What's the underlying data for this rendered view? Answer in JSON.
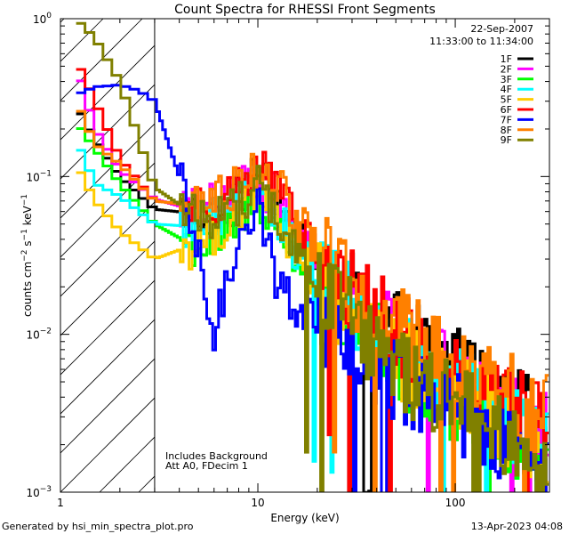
{
  "chart_data": {
    "type": "line",
    "title": "Count Spectra for RHESSI Front Segments",
    "xlabel": "Energy (keV)",
    "ylabel_parts": {
      "a": "counts cm",
      "sup1": "−2",
      "b": " s",
      "sup2": "−1",
      "c": " keV",
      "sup3": "−1"
    },
    "x_scale": "log",
    "y_scale": "log",
    "xlim": [
      1,
      300
    ],
    "ylim": [
      0.001,
      1
    ],
    "x_ticks": [
      {
        "value": 1,
        "label": "1"
      },
      {
        "value": 10,
        "label": "10"
      },
      {
        "value": 100,
        "label": "100"
      }
    ],
    "y_ticks": [
      {
        "value": 0.001,
        "base": "10",
        "exp": "−3"
      },
      {
        "value": 0.01,
        "base": "10",
        "exp": "−2"
      },
      {
        "value": 0.1,
        "base": "10",
        "exp": "−1"
      },
      {
        "value": 1,
        "base": "10",
        "exp": "0"
      }
    ],
    "date": "22-Sep-2007",
    "time_range": "11:33:00 to 11:34:00",
    "cutoff_energy_keV": 3.0,
    "annotation_lines": [
      "Includes Background",
      "Att A0, FDecim 1"
    ],
    "legend_position": "top-right",
    "series": [
      {
        "name": "1F",
        "color": "#000000",
        "points": [
          [
            1.2,
            0.28
          ],
          [
            1.5,
            0.17
          ],
          [
            2.0,
            0.1
          ],
          [
            3.0,
            0.062
          ],
          [
            5.0,
            0.058
          ],
          [
            7.0,
            0.06
          ],
          [
            10.0,
            0.11
          ],
          [
            13.0,
            0.07
          ],
          [
            16.0,
            0.04
          ],
          [
            22.0,
            0.025
          ],
          [
            32.0,
            0.016
          ],
          [
            45.0,
            0.012
          ],
          [
            65.0,
            0.008
          ],
          [
            95.0,
            0.0062
          ],
          [
            140.0,
            0.0045
          ],
          [
            200.0,
            0.0036
          ],
          [
            270.0,
            0.0026
          ]
        ]
      },
      {
        "name": "2F",
        "color": "#ff00ff",
        "points": [
          [
            1.2,
            0.5
          ],
          [
            1.5,
            0.2
          ],
          [
            2.0,
            0.11
          ],
          [
            3.0,
            0.072
          ],
          [
            5.0,
            0.06
          ],
          [
            7.0,
            0.07
          ],
          [
            10.0,
            0.1
          ],
          [
            13.0,
            0.065
          ],
          [
            16.0,
            0.04
          ],
          [
            22.0,
            0.024
          ],
          [
            32.0,
            0.015
          ],
          [
            45.0,
            0.01
          ],
          [
            65.0,
            0.007
          ],
          [
            95.0,
            0.0052
          ],
          [
            140.0,
            0.004
          ],
          [
            200.0,
            0.0032
          ],
          [
            270.0,
            0.0024
          ]
        ]
      },
      {
        "name": "3F",
        "color": "#00ff00",
        "points": [
          [
            1.2,
            0.22
          ],
          [
            1.5,
            0.15
          ],
          [
            2.0,
            0.09
          ],
          [
            3.0,
            0.05
          ],
          [
            5.0,
            0.035
          ],
          [
            7.0,
            0.042
          ],
          [
            10.0,
            0.075
          ],
          [
            13.0,
            0.045
          ],
          [
            16.0,
            0.027
          ],
          [
            22.0,
            0.017
          ],
          [
            32.0,
            0.011
          ],
          [
            45.0,
            0.0075
          ],
          [
            65.0,
            0.0052
          ],
          [
            95.0,
            0.0039
          ],
          [
            140.0,
            0.003
          ],
          [
            200.0,
            0.0023
          ],
          [
            270.0,
            0.0018
          ]
        ]
      },
      {
        "name": "4F",
        "color": "#00ffff",
        "points": [
          [
            1.2,
            0.17
          ],
          [
            1.5,
            0.09
          ],
          [
            2.0,
            0.075
          ],
          [
            3.0,
            0.05
          ],
          [
            5.0,
            0.048
          ],
          [
            7.0,
            0.055
          ],
          [
            10.0,
            0.09
          ],
          [
            13.0,
            0.055
          ],
          [
            16.0,
            0.033
          ],
          [
            22.0,
            0.021
          ],
          [
            32.0,
            0.014
          ],
          [
            45.0,
            0.009
          ],
          [
            65.0,
            0.0063
          ],
          [
            95.0,
            0.0046
          ],
          [
            140.0,
            0.0036
          ],
          [
            200.0,
            0.0028
          ],
          [
            270.0,
            0.0021
          ]
        ]
      },
      {
        "name": "5F",
        "color": "#ffcc00",
        "points": [
          [
            1.2,
            0.12
          ],
          [
            1.5,
            0.07
          ],
          [
            2.0,
            0.045
          ],
          [
            3.0,
            0.03
          ],
          [
            5.0,
            0.038
          ],
          [
            7.0,
            0.05
          ],
          [
            10.0,
            0.085
          ],
          [
            13.0,
            0.05
          ],
          [
            16.0,
            0.03
          ],
          [
            22.0,
            0.019
          ],
          [
            32.0,
            0.012
          ],
          [
            45.0,
            0.008
          ],
          [
            65.0,
            0.0056
          ],
          [
            95.0,
            0.0041
          ],
          [
            140.0,
            0.0032
          ],
          [
            200.0,
            0.0025
          ],
          [
            270.0,
            0.0019
          ]
        ]
      },
      {
        "name": "6F",
        "color": "#ff0000",
        "points": [
          [
            1.2,
            0.55
          ],
          [
            1.5,
            0.3
          ],
          [
            2.0,
            0.13
          ],
          [
            3.0,
            0.07
          ],
          [
            5.0,
            0.065
          ],
          [
            7.0,
            0.075
          ],
          [
            10.0,
            0.12
          ],
          [
            13.0,
            0.075
          ],
          [
            16.0,
            0.045
          ],
          [
            22.0,
            0.028
          ],
          [
            32.0,
            0.017
          ],
          [
            45.0,
            0.012
          ],
          [
            65.0,
            0.0082
          ],
          [
            95.0,
            0.006
          ],
          [
            140.0,
            0.0046
          ],
          [
            200.0,
            0.0036
          ],
          [
            270.0,
            0.0027
          ]
        ]
      },
      {
        "name": "7F",
        "color": "#0000ff",
        "points": [
          [
            1.2,
            0.33
          ],
          [
            1.5,
            0.37
          ],
          [
            2.0,
            0.38
          ],
          [
            2.5,
            0.35
          ],
          [
            3.0,
            0.3
          ],
          [
            4.0,
            0.1
          ],
          [
            5.0,
            0.03
          ],
          [
            6.0,
            0.01
          ],
          [
            7.0,
            0.02
          ],
          [
            8.0,
            0.045
          ],
          [
            10.0,
            0.07
          ],
          [
            12.0,
            0.025
          ],
          [
            15.0,
            0.016
          ],
          [
            20.0,
            0.012
          ],
          [
            28.0,
            0.009
          ],
          [
            40.0,
            0.0065
          ],
          [
            55.0,
            0.0048
          ],
          [
            80.0,
            0.0037
          ],
          [
            120.0,
            0.0028
          ],
          [
            180.0,
            0.0022
          ],
          [
            270.0,
            0.0016
          ]
        ]
      },
      {
        "name": "8F",
        "color": "#ff8000",
        "points": [
          [
            1.2,
            0.3
          ],
          [
            1.5,
            0.16
          ],
          [
            2.0,
            0.12
          ],
          [
            3.0,
            0.07
          ],
          [
            5.0,
            0.065
          ],
          [
            7.0,
            0.08
          ],
          [
            10.0,
            0.125
          ],
          [
            13.0,
            0.08
          ],
          [
            16.0,
            0.05
          ],
          [
            22.0,
            0.03
          ],
          [
            32.0,
            0.019
          ],
          [
            45.0,
            0.013
          ],
          [
            65.0,
            0.0092
          ],
          [
            95.0,
            0.0068
          ],
          [
            140.0,
            0.0052
          ],
          [
            200.0,
            0.004
          ],
          [
            270.0,
            0.003
          ]
        ]
      },
      {
        "name": "9F",
        "color": "#808000",
        "points": [
          [
            1.2,
            1.0
          ],
          [
            1.5,
            0.75
          ],
          [
            2.0,
            0.4
          ],
          [
            3.0,
            0.085
          ],
          [
            5.0,
            0.055
          ],
          [
            7.0,
            0.06
          ],
          [
            10.0,
            0.09
          ],
          [
            13.0,
            0.05
          ],
          [
            16.0,
            0.03
          ],
          [
            22.0,
            0.018
          ],
          [
            32.0,
            0.011
          ],
          [
            45.0,
            0.0072
          ],
          [
            65.0,
            0.005
          ],
          [
            95.0,
            0.0036
          ],
          [
            140.0,
            0.0027
          ],
          [
            200.0,
            0.002
          ],
          [
            270.0,
            0.0015
          ]
        ]
      }
    ]
  },
  "footer": {
    "generated_by": "Generated by hsi_min_spectra_plot.pro",
    "timestamp": "13-Apr-2023 04:08"
  }
}
